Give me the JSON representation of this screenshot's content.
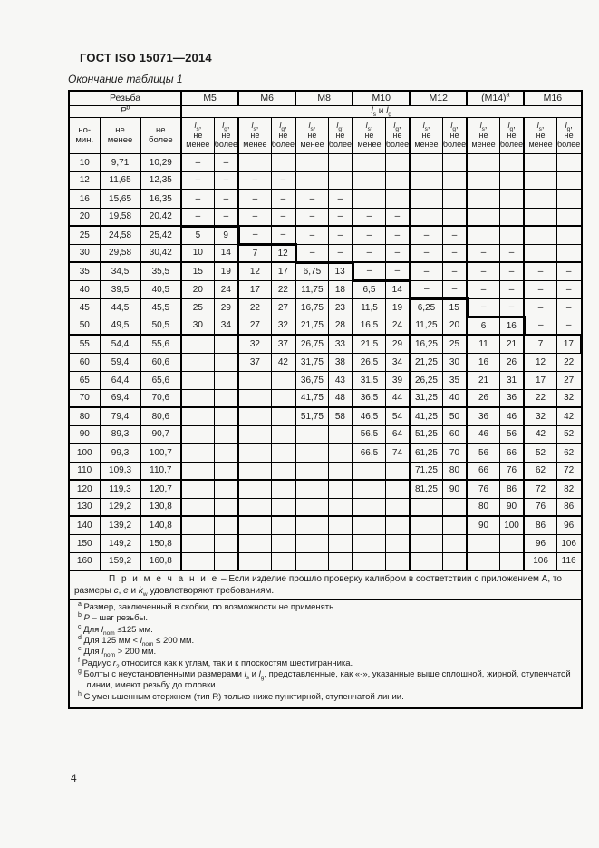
{
  "header": {
    "title": "ГОСТ ISO 15071—2014",
    "caption": "Окончание таблицы 1"
  },
  "table": {
    "thread_group": {
      "title": "Резьба",
      "pitch": "{P}",
      "pitch_sup": "b",
      "col_headers": [
        [
          "но-",
          "мин."
        ],
        [
          "не",
          "менее"
        ],
        [
          "не",
          "более"
        ]
      ]
    },
    "length_group_label": "{ls} и {lg}",
    "sizes": [
      {
        "label": "M5",
        "sup": ""
      },
      {
        "label": "M6",
        "sup": ""
      },
      {
        "label": "M8",
        "sup": ""
      },
      {
        "label": "M10",
        "sup": ""
      },
      {
        "label": "M12",
        "sup": ""
      },
      {
        "label": "(M14)",
        "sup": "a"
      },
      {
        "label": "M16",
        "sup": ""
      }
    ],
    "pair_headers": {
      "ls": [
        "{ls},",
        "не",
        "менее"
      ],
      "lg": [
        "{lg},",
        "не",
        "более"
      ]
    },
    "rows": [
      {
        "nom": "10",
        "min": "9,71",
        "max": "10,29",
        "vals": [
          "–",
          "–",
          "",
          "",
          "",
          "",
          "",
          "",
          "",
          "",
          "",
          "",
          "",
          ""
        ]
      },
      {
        "nom": "12",
        "min": "11,65",
        "max": "12,35",
        "vals": [
          "–",
          "–",
          "–",
          "–",
          "",
          "",
          "",
          "",
          "",
          "",
          "",
          "",
          "",
          ""
        ]
      },
      {
        "nom": "16",
        "min": "15,65",
        "max": "16,35",
        "vals": [
          "–",
          "–",
          "–",
          "–",
          "–",
          "–",
          "",
          "",
          "",
          "",
          "",
          "",
          "",
          ""
        ]
      },
      {
        "nom": "20",
        "min": "19,58",
        "max": "20,42",
        "vals": [
          "–",
          "–",
          "–",
          "–",
          "–",
          "–",
          "–",
          "–",
          "",
          "",
          "",
          "",
          "",
          ""
        ]
      },
      {
        "nom": "25",
        "min": "24,58",
        "max": "25,42",
        "vals": [
          "5",
          "9",
          "–",
          "–",
          "–",
          "–",
          "–",
          "–",
          "–",
          "–",
          "",
          "",
          "",
          ""
        ]
      },
      {
        "nom": "30",
        "min": "29,58",
        "max": "30,42",
        "vals": [
          "10",
          "14",
          "7",
          "12",
          "–",
          "–",
          "–",
          "–",
          "–",
          "–",
          "–",
          "–",
          "",
          ""
        ]
      },
      {
        "nom": "35",
        "min": "34,5",
        "max": "35,5",
        "vals": [
          "15",
          "19",
          "12",
          "17",
          "6,75",
          "13",
          "–",
          "–",
          "–",
          "–",
          "–",
          "–",
          "–",
          "–"
        ]
      },
      {
        "nom": "40",
        "min": "39,5",
        "max": "40,5",
        "vals": [
          "20",
          "24",
          "17",
          "22",
          "11,75",
          "18",
          "6,5",
          "14",
          "–",
          "–",
          "–",
          "–",
          "–",
          "–"
        ]
      },
      {
        "nom": "45",
        "min": "44,5",
        "max": "45,5",
        "vals": [
          "25",
          "29",
          "22",
          "27",
          "16,75",
          "23",
          "11,5",
          "19",
          "6,25",
          "15",
          "–",
          "–",
          "–",
          "–"
        ]
      },
      {
        "nom": "50",
        "min": "49,5",
        "max": "50,5",
        "vals": [
          "30",
          "34",
          "27",
          "32",
          "21,75",
          "28",
          "16,5",
          "24",
          "11,25",
          "20",
          "6",
          "16",
          "–",
          "–"
        ]
      },
      {
        "nom": "55",
        "min": "54,4",
        "max": "55,6",
        "vals": [
          "",
          "",
          "32",
          "37",
          "26,75",
          "33",
          "21,5",
          "29",
          "16,25",
          "25",
          "11",
          "21",
          "7",
          "17"
        ]
      },
      {
        "nom": "60",
        "min": "59,4",
        "max": "60,6",
        "vals": [
          "",
          "",
          "37",
          "42",
          "31,75",
          "38",
          "26,5",
          "34",
          "21,25",
          "30",
          "16",
          "26",
          "12",
          "22"
        ]
      },
      {
        "nom": "65",
        "min": "64,4",
        "max": "65,6",
        "vals": [
          "",
          "",
          "",
          "",
          "36,75",
          "43",
          "31,5",
          "39",
          "26,25",
          "35",
          "21",
          "31",
          "17",
          "27"
        ]
      },
      {
        "nom": "70",
        "min": "69,4",
        "max": "70,6",
        "vals": [
          "",
          "",
          "",
          "",
          "41,75",
          "48",
          "36,5",
          "44",
          "31,25",
          "40",
          "26",
          "36",
          "22",
          "32"
        ]
      },
      {
        "nom": "80",
        "min": "79,4",
        "max": "80,6",
        "vals": [
          "",
          "",
          "",
          "",
          "51,75",
          "58",
          "46,5",
          "54",
          "41,25",
          "50",
          "36",
          "46",
          "32",
          "42"
        ]
      },
      {
        "nom": "90",
        "min": "89,3",
        "max": "90,7",
        "vals": [
          "",
          "",
          "",
          "",
          "",
          "",
          "56,5",
          "64",
          "51,25",
          "60",
          "46",
          "56",
          "42",
          "52"
        ]
      },
      {
        "nom": "100",
        "min": "99,3",
        "max": "100,7",
        "vals": [
          "",
          "",
          "",
          "",
          "",
          "",
          "66,5",
          "74",
          "61,25",
          "70",
          "56",
          "66",
          "52",
          "62"
        ]
      },
      {
        "nom": "110",
        "min": "109,3",
        "max": "110,7",
        "vals": [
          "",
          "",
          "",
          "",
          "",
          "",
          "",
          "",
          "71,25",
          "80",
          "66",
          "76",
          "62",
          "72"
        ]
      },
      {
        "nom": "120",
        "min": "119,3",
        "max": "120,7",
        "vals": [
          "",
          "",
          "",
          "",
          "",
          "",
          "",
          "",
          "81,25",
          "90",
          "76",
          "86",
          "72",
          "82"
        ]
      },
      {
        "nom": "130",
        "min": "129,2",
        "max": "130,8",
        "vals": [
          "",
          "",
          "",
          "",
          "",
          "",
          "",
          "",
          "",
          "",
          "80",
          "90",
          "76",
          "86"
        ]
      },
      {
        "nom": "140",
        "min": "139,2",
        "max": "140,8",
        "vals": [
          "",
          "",
          "",
          "",
          "",
          "",
          "",
          "",
          "",
          "",
          "90",
          "100",
          "86",
          "96"
        ]
      },
      {
        "nom": "150",
        "min": "149,2",
        "max": "150,8",
        "vals": [
          "",
          "",
          "",
          "",
          "",
          "",
          "",
          "",
          "",
          "",
          "",
          "",
          "96",
          "106"
        ]
      },
      {
        "nom": "160",
        "min": "159,2",
        "max": "160,8",
        "vals": [
          "",
          "",
          "",
          "",
          "",
          "",
          "",
          "",
          "",
          "",
          "",
          "",
          "106",
          "116"
        ]
      }
    ],
    "group_break_after_nom": [
      "12",
      "20",
      "30",
      "50",
      "70",
      "90",
      "110",
      "130"
    ],
    "step_first_row_nom": [
      "25",
      "30",
      "35",
      "40",
      "45",
      "50",
      "55"
    ],
    "note": {
      "label": "П р и м е ч а н и е",
      "text": "– Если изделие прошло проверку калибром в соответствии с приложением А, то размеры {c}, {e} и {kw} удовлетворяют требованиям."
    },
    "footnotes": [
      {
        "marker": "a",
        "text": "Размер, заключенный в скобки, по возможности не применять."
      },
      {
        "marker": "b",
        "text": "{P} – шаг резьбы."
      },
      {
        "marker": "c",
        "text": "Для {lnom} ≤125 мм."
      },
      {
        "marker": "d",
        "text": "Для 125 мм < {lnom} ≤ 200 мм."
      },
      {
        "marker": "e",
        "text": "Для {lnom} > 200 мм."
      },
      {
        "marker": "f",
        "text": "Радиус {r2} относится как к углам, так и к плоскостям шестигранника."
      },
      {
        "marker": "g",
        "text": "Болты с неустановленными размерами {ls} и {lg}, представленные, как «-», указанные выше сплошной, жирной, ступенчатой линии, имеют резьбу до головки."
      },
      {
        "marker": "h",
        "text": "С уменьшенным стержнем (тип R) только ниже пунктирной, ступенчатой линии."
      }
    ]
  },
  "footer": {
    "page_number": "4"
  }
}
